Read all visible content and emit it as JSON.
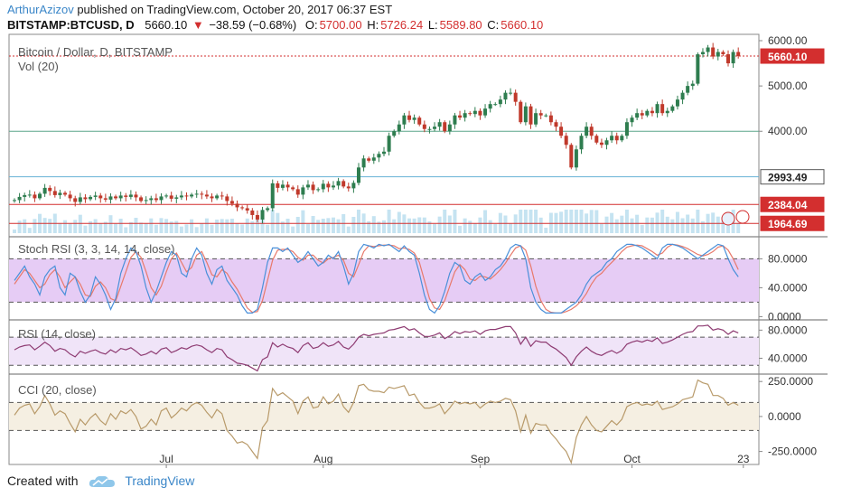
{
  "header": {
    "author": "ArthurAzizov",
    "published": " published on TradingView.com, October 20, 2017 06:37 EST",
    "symbol": "BITSTAMP:BTCUSD, D",
    "last": "5660.10",
    "change": "−38.59 (−0.68%)",
    "open_label": "O:",
    "open": "5700.00",
    "high_label": "H:",
    "high": "5726.24",
    "low_label": "L:",
    "low": "5589.80",
    "close_label": "C:",
    "close": "5660.10"
  },
  "footer": {
    "created_with": "Created with",
    "brand": "TradingView"
  },
  "colors": {
    "up": "#2e7d4f",
    "down": "#c0392b",
    "vol": "#bfe0ef",
    "stoch_bg": "#e6ccf5",
    "rsi_bg": "#f0e4f8",
    "cci_bg": "#f5efe2",
    "k_line": "#4a90d9",
    "d_line": "#e8796b",
    "rsi_line": "#8e3b72",
    "cci_line": "#b89a6a",
    "hline_green": "#5aa58a",
    "hline_blue": "#67b3d6",
    "hline_red": "#d32f2f"
  },
  "chart_data": {
    "type": "candlestick",
    "main_title": "Bitcoin / Dollar, D, BITSTAMP",
    "vol_label": "Vol (20)",
    "y_ticks": [
      "6000.00",
      "5000.00",
      "4000.00"
    ],
    "y_tick_values": [
      6000,
      5000,
      4000
    ],
    "ylim": [
      1750,
      6100
    ],
    "price_tags": [
      {
        "label": "5660.10",
        "value": 5660.1,
        "bg": "#d32f2f"
      },
      {
        "label": "2993.49",
        "value": 2993.49,
        "bg": "#ffffff"
      },
      {
        "label": "2384.04",
        "value": 2384.04,
        "bg": "#d32f2f"
      },
      {
        "label": "1964.69",
        "value": 1964.69,
        "bg": "#d32f2f"
      }
    ],
    "hlines": [
      {
        "value": 4000,
        "color": "green"
      },
      {
        "value": 2993.49,
        "color": "blue"
      },
      {
        "value": 2384.04,
        "color": "red"
      },
      {
        "value": 1964.69,
        "color": "red"
      }
    ],
    "x_ticks": [
      {
        "label": "Jul",
        "day": 30
      },
      {
        "label": "Aug",
        "day": 61
      },
      {
        "label": "Sep",
        "day": 92
      },
      {
        "label": "Oct",
        "day": 122
      },
      {
        "label": "23",
        "day": 144
      }
    ],
    "closes": [
      2480,
      2550,
      2590,
      2600,
      2520,
      2620,
      2750,
      2680,
      2590,
      2640,
      2600,
      2520,
      2440,
      2540,
      2500,
      2550,
      2580,
      2520,
      2490,
      2560,
      2520,
      2580,
      2550,
      2600,
      2540,
      2460,
      2480,
      2520,
      2480,
      2560,
      2580,
      2510,
      2540,
      2580,
      2560,
      2600,
      2620,
      2600,
      2560,
      2520,
      2580,
      2560,
      2460,
      2400,
      2320,
      2300,
      2250,
      2150,
      2050,
      2260,
      2300,
      2850,
      2750,
      2820,
      2760,
      2720,
      2600,
      2760,
      2820,
      2700,
      2720,
      2840,
      2760,
      2800,
      2900,
      2780,
      2740,
      2860,
      3200,
      3400,
      3350,
      3420,
      3500,
      3550,
      3900,
      4000,
      4150,
      4350,
      4250,
      4300,
      4150,
      4050,
      4050,
      4100,
      4200,
      4000,
      4150,
      4350,
      4300,
      4400,
      4380,
      4450,
      4350,
      4500,
      4600,
      4600,
      4700,
      4850,
      4850,
      4650,
      4200,
      4550,
      4150,
      4400,
      4350,
      4350,
      4200,
      4100,
      3900,
      3700,
      3200,
      3600,
      3900,
      4100,
      3900,
      3750,
      3700,
      3800,
      3900,
      3800,
      3900,
      4200,
      4300,
      4400,
      4350,
      4450,
      4400,
      4600,
      4400,
      4450,
      4550,
      4700,
      4850,
      5000,
      5050,
      5700,
      5750,
      5850,
      5650,
      5750,
      5700,
      5500,
      5750,
      5660
    ],
    "stoch_rsi": {
      "label": "Stoch RSI (3, 3, 14, 14, close)",
      "ticks": [
        "80.0000",
        "40.0000",
        "0.0000"
      ],
      "levels": [
        80,
        20
      ],
      "k": [
        50,
        60,
        70,
        55,
        45,
        30,
        55,
        65,
        70,
        40,
        30,
        60,
        55,
        35,
        20,
        30,
        55,
        45,
        30,
        10,
        25,
        60,
        80,
        95,
        90,
        70,
        40,
        20,
        35,
        55,
        75,
        90,
        85,
        60,
        55,
        80,
        95,
        85,
        60,
        45,
        65,
        70,
        50,
        40,
        30,
        15,
        5,
        5,
        10,
        40,
        75,
        95,
        95,
        90,
        95,
        85,
        75,
        80,
        90,
        80,
        70,
        75,
        85,
        80,
        90,
        70,
        45,
        60,
        90,
        100,
        98,
        95,
        100,
        98,
        100,
        95,
        90,
        98,
        90,
        85,
        60,
        30,
        10,
        5,
        15,
        35,
        60,
        75,
        70,
        50,
        45,
        55,
        60,
        50,
        55,
        65,
        70,
        80,
        95,
        100,
        98,
        80,
        40,
        20,
        10,
        5,
        5,
        5,
        5,
        10,
        15,
        20,
        30,
        45,
        55,
        60,
        65,
        75,
        80,
        90,
        95,
        100,
        100,
        98,
        95,
        90,
        85,
        80,
        95,
        100,
        100,
        98,
        95,
        90,
        85,
        80,
        85,
        90,
        95,
        100,
        98,
        80,
        65,
        55
      ],
      "d": [
        45,
        55,
        65,
        60,
        50,
        40,
        45,
        58,
        65,
        55,
        40,
        48,
        55,
        45,
        30,
        28,
        42,
        48,
        40,
        25,
        22,
        42,
        62,
        82,
        90,
        82,
        62,
        40,
        30,
        42,
        62,
        80,
        88,
        75,
        62,
        68,
        85,
        90,
        75,
        58,
        55,
        65,
        60,
        48,
        38,
        25,
        12,
        6,
        7,
        22,
        50,
        78,
        92,
        93,
        93,
        90,
        82,
        78,
        85,
        85,
        78,
        74,
        80,
        82,
        85,
        78,
        60,
        55,
        72,
        90,
        98,
        97,
        98,
        99,
        99,
        98,
        94,
        95,
        93,
        88,
        75,
        50,
        25,
        12,
        10,
        22,
        42,
        62,
        72,
        65,
        52,
        50,
        56,
        55,
        52,
        58,
        65,
        74,
        85,
        95,
        98,
        92,
        70,
        42,
        22,
        10,
        6,
        5,
        5,
        7,
        10,
        15,
        22,
        32,
        45,
        55,
        60,
        68,
        75,
        82,
        90,
        96,
        98,
        99,
        98,
        94,
        90,
        85,
        88,
        96,
        100,
        99,
        97,
        94,
        90,
        86,
        84,
        86,
        90,
        96,
        98,
        92,
        80,
        65
      ]
    },
    "rsi": {
      "label": "RSI (14, close)",
      "ticks": [
        "80.0000",
        "40.0000"
      ],
      "levels": [
        70,
        30
      ],
      "values": [
        52,
        56,
        58,
        59,
        52,
        57,
        63,
        58,
        50,
        54,
        52,
        46,
        42,
        50,
        47,
        50,
        52,
        48,
        46,
        52,
        48,
        54,
        52,
        55,
        50,
        44,
        46,
        50,
        46,
        53,
        55,
        48,
        51,
        55,
        53,
        57,
        59,
        57,
        52,
        48,
        54,
        52,
        42,
        38,
        33,
        32,
        30,
        26,
        22,
        38,
        42,
        62,
        56,
        60,
        56,
        54,
        48,
        58,
        62,
        54,
        56,
        62,
        57,
        59,
        64,
        56,
        53,
        60,
        70,
        74,
        72,
        74,
        75,
        76,
        80,
        81,
        83,
        85,
        80,
        82,
        76,
        71,
        71,
        73,
        76,
        68,
        72,
        78,
        75,
        78,
        77,
        79,
        74,
        79,
        81,
        81,
        83,
        85,
        85,
        76,
        60,
        70,
        57,
        65,
        63,
        63,
        57,
        53,
        47,
        41,
        30,
        42,
        50,
        56,
        50,
        46,
        44,
        48,
        51,
        47,
        51,
        60,
        63,
        65,
        63,
        66,
        64,
        69,
        61,
        63,
        66,
        70,
        74,
        77,
        78,
        86,
        86,
        87,
        80,
        82,
        80,
        74,
        79,
        76
      ]
    },
    "cci": {
      "label": "CCI (20, close)",
      "ticks": [
        "250.0000",
        "0.0000",
        "-250.0000"
      ],
      "levels": [
        100,
        -100
      ],
      "values": [
        10,
        60,
        80,
        90,
        20,
        70,
        150,
        90,
        10,
        40,
        20,
        -50,
        -110,
        -20,
        -60,
        -10,
        20,
        -30,
        -60,
        20,
        -20,
        40,
        20,
        50,
        0,
        -90,
        -70,
        -20,
        -60,
        40,
        60,
        -10,
        20,
        60,
        40,
        80,
        100,
        80,
        30,
        -10,
        50,
        20,
        -100,
        -140,
        -190,
        -180,
        -200,
        -250,
        -300,
        -80,
        -30,
        200,
        150,
        170,
        140,
        110,
        20,
        110,
        140,
        60,
        70,
        140,
        90,
        110,
        160,
        70,
        30,
        100,
        220,
        230,
        190,
        180,
        180,
        170,
        210,
        200,
        210,
        220,
        150,
        160,
        100,
        60,
        60,
        70,
        90,
        20,
        60,
        110,
        90,
        100,
        90,
        100,
        60,
        90,
        110,
        100,
        110,
        130,
        120,
        40,
        -110,
        10,
        -120,
        -50,
        -60,
        -60,
        -120,
        -160,
        -210,
        -250,
        -330,
        -150,
        -60,
        0,
        -60,
        -100,
        -110,
        -70,
        -30,
        -60,
        -20,
        70,
        90,
        100,
        80,
        90,
        80,
        110,
        50,
        60,
        70,
        90,
        120,
        130,
        140,
        260,
        240,
        230,
        150,
        150,
        130,
        80,
        100,
        80
      ]
    }
  }
}
